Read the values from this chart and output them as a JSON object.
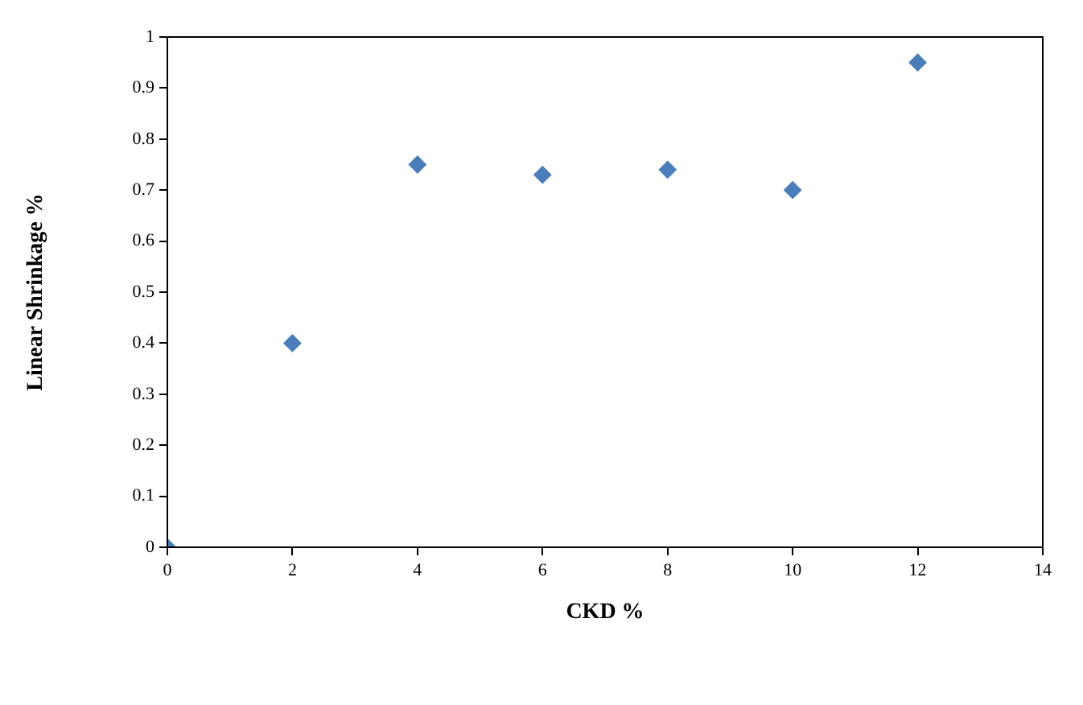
{
  "chart_data": {
    "type": "scatter",
    "xlabel": "CKD %",
    "ylabel": "Linear Shrinkage %",
    "x": [
      0,
      2,
      4,
      6,
      8,
      10,
      12
    ],
    "series": [
      {
        "color": "#4a7ebb",
        "values": [
          0,
          0.4,
          0.75,
          0.73,
          0.74,
          0.7,
          0.95
        ]
      }
    ],
    "xlim": [
      0,
      14
    ],
    "xticks": [
      0,
      2,
      4,
      6,
      8,
      10,
      12,
      14
    ],
    "ylim": [
      0,
      1
    ],
    "yticks": [
      0,
      0.1,
      0.2,
      0.3,
      0.4,
      0.5,
      0.6,
      0.7,
      0.8,
      0.9,
      1
    ],
    "grid": false,
    "legend": false,
    "marker": "diamond"
  }
}
